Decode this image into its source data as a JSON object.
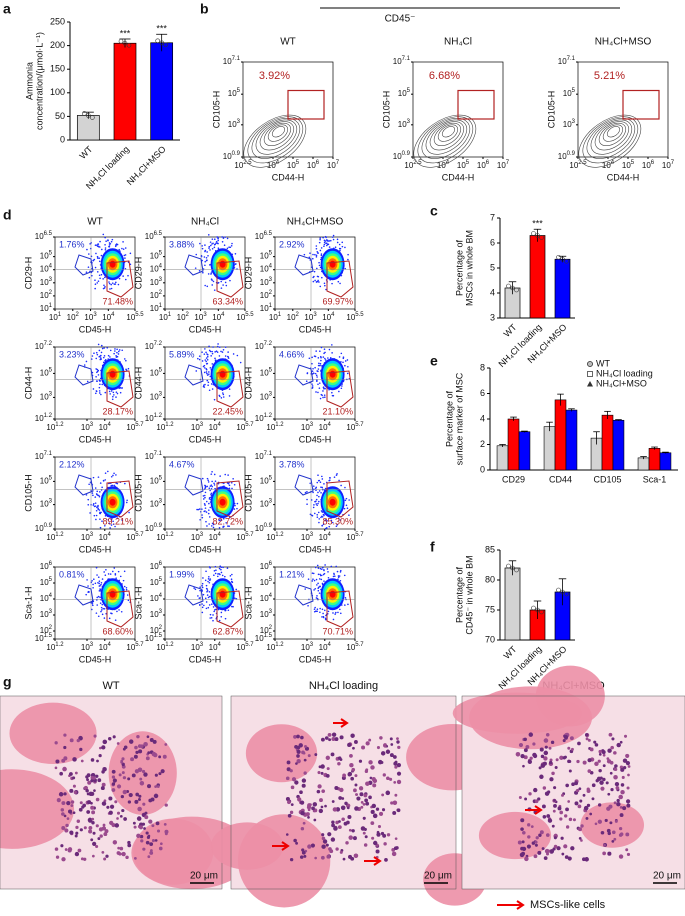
{
  "panel_labels": [
    "a",
    "b",
    "c",
    "d",
    "e",
    "f",
    "g"
  ],
  "chart_data": [
    {
      "type": "bar",
      "ylabel": [
        "Ammonia",
        "concentration/(μmol·L⁻¹)"
      ],
      "categories": [
        "WT",
        "NH₄Cl loading",
        "NH₄Cl+MSO"
      ],
      "values": [
        52,
        205,
        206
      ],
      "errors": [
        7,
        9,
        18
      ],
      "annotations": [
        null,
        "***",
        "***"
      ],
      "colors": [
        "#d3d3d3",
        "#ff0000",
        "#0000ff"
      ],
      "ylim": [
        0,
        250
      ],
      "yticks": [
        0,
        50,
        100,
        150,
        200,
        250
      ]
    },
    {
      "type": "bar",
      "ylabel": [
        "Percentage of",
        "MSCs in whole BM"
      ],
      "categories": [
        "WT",
        "NH₄Cl loading",
        "NH₄Cl+MSO"
      ],
      "values": [
        4.2,
        6.3,
        5.35
      ],
      "errors": [
        0.25,
        0.25,
        0.12
      ],
      "annotations": [
        null,
        "***",
        null
      ],
      "colors": [
        "#d3d3d3",
        "#ff0000",
        "#0000ff"
      ],
      "ylim": [
        3,
        7
      ],
      "yticks": [
        3,
        4,
        5,
        6,
        7
      ]
    },
    {
      "type": "grouped_bar",
      "ylabel": [
        "Percentage of",
        "surface marker of MSC"
      ],
      "categories": [
        "CD29",
        "CD44",
        "CD105",
        "Sca-1"
      ],
      "series": [
        {
          "name": "WT",
          "color": "#d3d3d3",
          "values": [
            1.9,
            3.4,
            2.5,
            0.95
          ],
          "errors": [
            0.1,
            0.35,
            0.5,
            0.1
          ]
        },
        {
          "name": "NH₄Cl loading",
          "color": "#ff0000",
          "values": [
            4.0,
            5.5,
            4.3,
            1.7
          ],
          "errors": [
            0.15,
            0.45,
            0.3,
            0.1
          ]
        },
        {
          "name": "NH₄Cl+MSO",
          "color": "#0000ff",
          "values": [
            3.0,
            4.7,
            3.9,
            1.35
          ],
          "errors": [
            0.05,
            0.1,
            0.05,
            0.05
          ]
        }
      ],
      "ylim": [
        0,
        8
      ],
      "yticks": [
        0,
        2,
        4,
        6,
        8
      ],
      "legend": "upper right"
    },
    {
      "type": "bar",
      "ylabel": [
        "Percentage of",
        "CD45⁻ in whole BM"
      ],
      "categories": [
        "WT",
        "NH₄Cl loading",
        "NH₄Cl+MSO"
      ],
      "values": [
        82,
        75,
        78
      ],
      "errors": [
        1.2,
        1.5,
        2.2
      ],
      "annotations": [
        null,
        null,
        null
      ],
      "colors": [
        "#d3d3d3",
        "#ff0000",
        "#0000ff"
      ],
      "ylim": [
        70,
        85
      ],
      "yticks": [
        70,
        75,
        80,
        85
      ]
    }
  ],
  "flow_contour": {
    "header": "CD45⁻",
    "x_label": "CD44-H",
    "y_label": "CD105-H",
    "xticks": [
      {
        "base": "10",
        "exp": "2.5"
      },
      {
        "base": "10",
        "exp": "4"
      },
      {
        "base": "10",
        "exp": "5"
      },
      {
        "base": "10",
        "exp": "6"
      },
      {
        "base": "10",
        "exp": "7"
      }
    ],
    "yticks": [
      {
        "base": "10",
        "exp": "0.9"
      },
      {
        "base": "10",
        "exp": "3"
      },
      {
        "base": "10",
        "exp": "5"
      },
      {
        "base": "10",
        "exp": "7.1"
      }
    ],
    "plots": [
      {
        "title": "WT",
        "gate_percent": "3.92%"
      },
      {
        "title": "NH₄Cl",
        "gate_percent": "6.68%"
      },
      {
        "title": "NH₄Cl+MSO",
        "gate_percent": "5.21%"
      }
    ]
  },
  "flow_density": {
    "columns": [
      "WT",
      "NH₄Cl",
      "NH₄Cl+MSO"
    ],
    "x_label": "CD45-H",
    "rows": [
      {
        "y_label": "CD29-H",
        "xticks": [
          {
            "base": "10",
            "exp": "1"
          },
          {
            "base": "10",
            "exp": "2"
          },
          {
            "base": "10",
            "exp": "3"
          },
          {
            "base": "10",
            "exp": "4"
          },
          {
            "base": "10",
            "exp": "5.5"
          }
        ],
        "yticks": [
          {
            "base": "10",
            "exp": "1"
          },
          {
            "base": "10",
            "exp": "2"
          },
          {
            "base": "10",
            "exp": "3"
          },
          {
            "base": "10",
            "exp": "4"
          },
          {
            "base": "10",
            "exp": "5"
          },
          {
            "base": "10",
            "exp": "6.5"
          }
        ],
        "percents": [
          [
            "1.76%",
            "71.48%"
          ],
          [
            "3.88%",
            "63.34%"
          ],
          [
            "2.92%",
            "69.97%"
          ]
        ]
      },
      {
        "y_label": "CD44-H",
        "xticks": [
          {
            "base": "10",
            "exp": "1.2"
          },
          {
            "base": "10",
            "exp": "3"
          },
          {
            "base": "10",
            "exp": "4"
          },
          {
            "base": "10",
            "exp": "5.7"
          }
        ],
        "yticks": [
          {
            "base": "10",
            "exp": "1.2"
          },
          {
            "base": "10",
            "exp": "3"
          },
          {
            "base": "10",
            "exp": "5"
          },
          {
            "base": "10",
            "exp": "7.2"
          }
        ],
        "percents": [
          [
            "3.23%",
            "28.17%"
          ],
          [
            "5.89%",
            "22.45%"
          ],
          [
            "4.66%",
            "21.10%"
          ]
        ]
      },
      {
        "y_label": "CD105-H",
        "xticks": [
          {
            "base": "10",
            "exp": "1.2"
          },
          {
            "base": "10",
            "exp": "3"
          },
          {
            "base": "10",
            "exp": "4"
          },
          {
            "base": "10",
            "exp": "5.7"
          }
        ],
        "yticks": [
          {
            "base": "10",
            "exp": "0.9"
          },
          {
            "base": "10",
            "exp": "3"
          },
          {
            "base": "10",
            "exp": "5"
          },
          {
            "base": "10",
            "exp": "7.1"
          }
        ],
        "percents": [
          [
            "2.12%",
            "89.21%"
          ],
          [
            "4.67%",
            "82.72%"
          ],
          [
            "3.78%",
            "85.30%"
          ]
        ]
      },
      {
        "y_label": "Sca-1-H",
        "xticks": [
          {
            "base": "10",
            "exp": "1.2"
          },
          {
            "base": "10",
            "exp": "3"
          },
          {
            "base": "10",
            "exp": "4"
          },
          {
            "base": "10",
            "exp": "5.7"
          }
        ],
        "yticks": [
          {
            "base": "10",
            "exp": "1.5"
          },
          {
            "base": "10",
            "exp": "2"
          },
          {
            "base": "10",
            "exp": "3"
          },
          {
            "base": "10",
            "exp": "4"
          },
          {
            "base": "10",
            "exp": "5"
          },
          {
            "base": "10",
            "exp": "6"
          }
        ],
        "percents": [
          [
            "0.81%",
            "68.60%"
          ],
          [
            "1.99%",
            "62.87%"
          ],
          [
            "1.21%",
            "70.71%"
          ]
        ]
      }
    ]
  },
  "histology": {
    "panels": [
      {
        "title": "WT",
        "scale": "20 μm"
      },
      {
        "title": "NH₄Cl loading",
        "scale": "20 μm"
      },
      {
        "title": "NH₄Cl+MSO",
        "scale": "20 μm"
      }
    ],
    "legend": "MSCs-like cells"
  }
}
